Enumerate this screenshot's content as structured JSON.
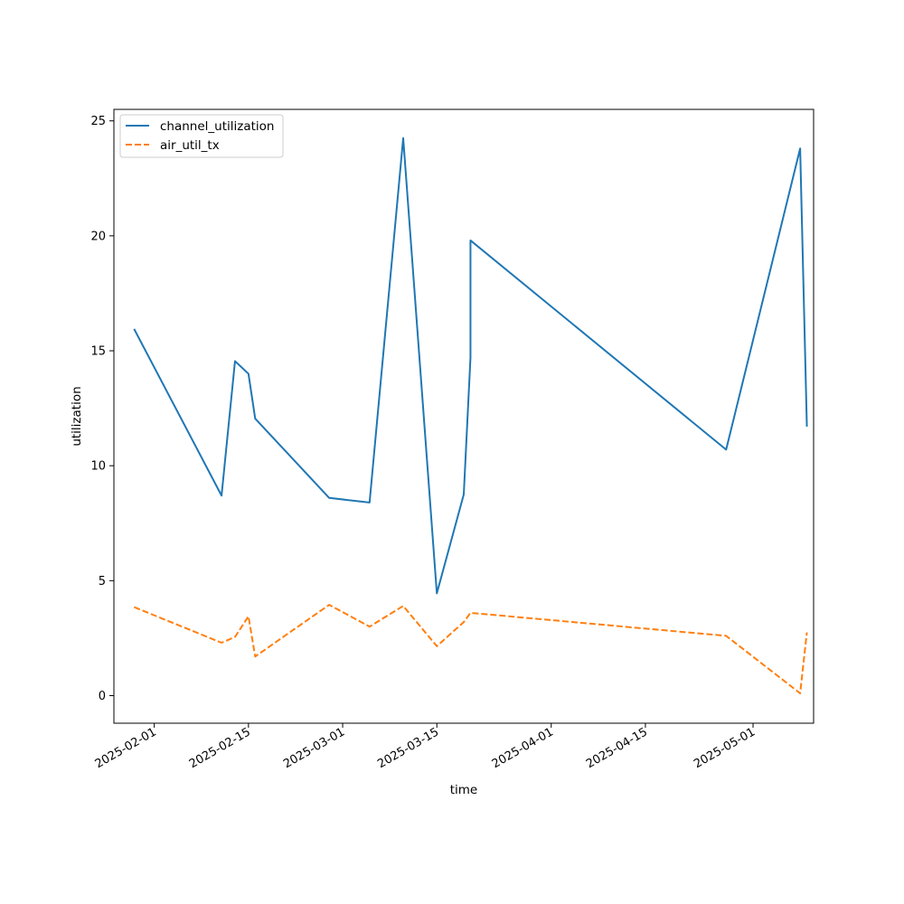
{
  "chart_data": {
    "type": "line",
    "title": "",
    "xlabel": "time",
    "ylabel": "utilization",
    "x_axis_type": "date",
    "xlim": [
      "2025-01-26",
      "2025-05-10"
    ],
    "ylim": [
      -1.2,
      25.5
    ],
    "xticks": [
      "2025-02-01",
      "2025-02-15",
      "2025-03-01",
      "2025-03-15",
      "2025-04-01",
      "2025-04-15",
      "2025-05-01"
    ],
    "yticks": [
      0,
      5,
      10,
      15,
      20,
      25
    ],
    "grid": false,
    "legend_position": "upper-left",
    "series": [
      {
        "name": "channel_utilization",
        "color": "#1f77b4",
        "style": "solid",
        "x": [
          "2025-01-29",
          "2025-02-11",
          "2025-02-13",
          "2025-02-15",
          "2025-02-16",
          "2025-02-27",
          "2025-03-05",
          "2025-03-10",
          "2025-03-15",
          "2025-03-19",
          "2025-03-20",
          "2025-03-20",
          "2025-04-27",
          "2025-05-08",
          "2025-05-09"
        ],
        "y": [
          15.95,
          8.7,
          14.55,
          14.0,
          12.05,
          8.6,
          8.4,
          24.25,
          4.45,
          8.75,
          14.7,
          19.8,
          10.7,
          23.8,
          11.7
        ]
      },
      {
        "name": "air_util_tx",
        "color": "#ff7f0e",
        "style": "dashed",
        "x": [
          "2025-01-29",
          "2025-02-11",
          "2025-02-13",
          "2025-02-15",
          "2025-02-16",
          "2025-02-27",
          "2025-03-05",
          "2025-03-10",
          "2025-03-15",
          "2025-03-19",
          "2025-03-20",
          "2025-03-20",
          "2025-04-27",
          "2025-05-08",
          "2025-05-09"
        ],
        "y": [
          3.85,
          2.3,
          2.55,
          3.45,
          1.7,
          3.95,
          3.0,
          3.9,
          2.15,
          3.2,
          3.6,
          3.6,
          2.6,
          0.1,
          2.75
        ]
      }
    ]
  }
}
